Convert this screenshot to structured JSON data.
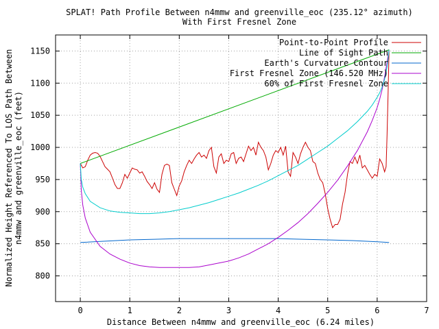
{
  "chart_data": {
    "type": "line",
    "title": "SPLAT! Path Profile Between n4mmw and greenville_eoc (235.12° azimuth)",
    "subtitle": "With First Fresnel Zone",
    "xlabel": "Distance Between n4mmw and greenville_eoc (6.24 miles)",
    "ylabel_line1": "Normalized Height Referenced To LOS Path Between",
    "ylabel_line2": "n4mmw and greenville_eoc (feet)",
    "xlim": [
      -0.5,
      7
    ],
    "ylim": [
      760,
      1175
    ],
    "x_ticks": [
      0,
      1,
      2,
      3,
      4,
      5,
      6,
      7
    ],
    "y_ticks": [
      800,
      850,
      900,
      950,
      1000,
      1050,
      1100,
      1150
    ],
    "grid": true,
    "legend_position": "top-right",
    "series": [
      {
        "name": "Point-to-Point Profile",
        "color": "#cc0000",
        "points": [
          [
            0,
            975
          ],
          [
            0.05,
            968
          ],
          [
            0.1,
            970
          ],
          [
            0.15,
            980
          ],
          [
            0.2,
            988
          ],
          [
            0.25,
            991
          ],
          [
            0.3,
            992
          ],
          [
            0.35,
            991
          ],
          [
            0.4,
            986
          ],
          [
            0.45,
            978
          ],
          [
            0.5,
            970
          ],
          [
            0.55,
            966
          ],
          [
            0.6,
            962
          ],
          [
            0.65,
            952
          ],
          [
            0.7,
            942
          ],
          [
            0.75,
            936
          ],
          [
            0.8,
            936
          ],
          [
            0.85,
            945
          ],
          [
            0.9,
            958
          ],
          [
            0.95,
            952
          ],
          [
            1.0,
            960
          ],
          [
            1.05,
            968
          ],
          [
            1.1,
            966
          ],
          [
            1.15,
            965
          ],
          [
            1.2,
            960
          ],
          [
            1.25,
            962
          ],
          [
            1.3,
            955
          ],
          [
            1.35,
            947
          ],
          [
            1.4,
            942
          ],
          [
            1.45,
            936
          ],
          [
            1.5,
            945
          ],
          [
            1.55,
            935
          ],
          [
            1.6,
            930
          ],
          [
            1.65,
            958
          ],
          [
            1.7,
            972
          ],
          [
            1.75,
            974
          ],
          [
            1.8,
            972
          ],
          [
            1.85,
            945
          ],
          [
            1.9,
            935
          ],
          [
            1.95,
            925
          ],
          [
            2.0,
            940
          ],
          [
            2.05,
            948
          ],
          [
            2.1,
            962
          ],
          [
            2.15,
            972
          ],
          [
            2.2,
            980
          ],
          [
            2.25,
            975
          ],
          [
            2.3,
            982
          ],
          [
            2.35,
            988
          ],
          [
            2.4,
            992
          ],
          [
            2.45,
            985
          ],
          [
            2.5,
            988
          ],
          [
            2.55,
            983
          ],
          [
            2.6,
            995
          ],
          [
            2.65,
            1000
          ],
          [
            2.7,
            970
          ],
          [
            2.75,
            960
          ],
          [
            2.8,
            985
          ],
          [
            2.85,
            990
          ],
          [
            2.9,
            975
          ],
          [
            2.95,
            980
          ],
          [
            3.0,
            978
          ],
          [
            3.05,
            990
          ],
          [
            3.1,
            992
          ],
          [
            3.15,
            975
          ],
          [
            3.2,
            983
          ],
          [
            3.25,
            985
          ],
          [
            3.3,
            978
          ],
          [
            3.35,
            990
          ],
          [
            3.4,
            1002
          ],
          [
            3.45,
            995
          ],
          [
            3.5,
            1000
          ],
          [
            3.55,
            988
          ],
          [
            3.6,
            1008
          ],
          [
            3.65,
            1000
          ],
          [
            3.7,
            995
          ],
          [
            3.75,
            985
          ],
          [
            3.8,
            965
          ],
          [
            3.85,
            975
          ],
          [
            3.9,
            988
          ],
          [
            3.95,
            995
          ],
          [
            4.0,
            992
          ],
          [
            4.05,
            1000
          ],
          [
            4.1,
            988
          ],
          [
            4.15,
            1002
          ],
          [
            4.2,
            962
          ],
          [
            4.25,
            955
          ],
          [
            4.3,
            992
          ],
          [
            4.35,
            985
          ],
          [
            4.4,
            975
          ],
          [
            4.45,
            990
          ],
          [
            4.5,
            1000
          ],
          [
            4.55,
            1008
          ],
          [
            4.6,
            1000
          ],
          [
            4.65,
            995
          ],
          [
            4.7,
            978
          ],
          [
            4.75,
            975
          ],
          [
            4.8,
            960
          ],
          [
            4.85,
            950
          ],
          [
            4.9,
            945
          ],
          [
            4.95,
            928
          ],
          [
            5.0,
            905
          ],
          [
            5.05,
            888
          ],
          [
            5.1,
            875
          ],
          [
            5.15,
            880
          ],
          [
            5.2,
            880
          ],
          [
            5.25,
            888
          ],
          [
            5.3,
            912
          ],
          [
            5.35,
            930
          ],
          [
            5.4,
            958
          ],
          [
            5.45,
            978
          ],
          [
            5.5,
            975
          ],
          [
            5.55,
            985
          ],
          [
            5.6,
            975
          ],
          [
            5.65,
            988
          ],
          [
            5.7,
            968
          ],
          [
            5.75,
            972
          ],
          [
            5.8,
            965
          ],
          [
            5.85,
            958
          ],
          [
            5.9,
            952
          ],
          [
            5.95,
            958
          ],
          [
            6.0,
            955
          ],
          [
            6.05,
            982
          ],
          [
            6.1,
            975
          ],
          [
            6.15,
            962
          ],
          [
            6.18,
            970
          ],
          [
            6.2,
            1020
          ],
          [
            6.22,
            1080
          ],
          [
            6.24,
            1152
          ]
        ]
      },
      {
        "name": "Line of Sight Path",
        "color": "#00aa00",
        "points": [
          [
            0,
            975
          ],
          [
            6.24,
            1152
          ]
        ]
      },
      {
        "name": "Earth's Curvature Contour",
        "color": "#0066cc",
        "points": [
          [
            0,
            852
          ],
          [
            0.5,
            854
          ],
          [
            1,
            856
          ],
          [
            1.5,
            857
          ],
          [
            2,
            858
          ],
          [
            2.5,
            858
          ],
          [
            3,
            858
          ],
          [
            3.5,
            858
          ],
          [
            4,
            858
          ],
          [
            4.5,
            857
          ],
          [
            5,
            856
          ],
          [
            5.5,
            855
          ],
          [
            6,
            853
          ],
          [
            6.24,
            852
          ]
        ]
      },
      {
        "name": "First Fresnel Zone (146.520 MHz)",
        "color": "#aa00cc",
        "points": [
          [
            0,
            975
          ],
          [
            0.02,
            933
          ],
          [
            0.05,
            910
          ],
          [
            0.1,
            890
          ],
          [
            0.2,
            868
          ],
          [
            0.4,
            846
          ],
          [
            0.6,
            834
          ],
          [
            0.8,
            826
          ],
          [
            1.0,
            820
          ],
          [
            1.2,
            816
          ],
          [
            1.4,
            814
          ],
          [
            1.6,
            813
          ],
          [
            1.8,
            813
          ],
          [
            2.0,
            813
          ],
          [
            2.2,
            813
          ],
          [
            2.4,
            814
          ],
          [
            2.6,
            817
          ],
          [
            2.8,
            820
          ],
          [
            3.0,
            823
          ],
          [
            3.2,
            828
          ],
          [
            3.4,
            834
          ],
          [
            3.6,
            842
          ],
          [
            3.8,
            850
          ],
          [
            4.0,
            860
          ],
          [
            4.2,
            871
          ],
          [
            4.4,
            883
          ],
          [
            4.6,
            897
          ],
          [
            4.8,
            913
          ],
          [
            5.0,
            930
          ],
          [
            5.2,
            949
          ],
          [
            5.4,
            971
          ],
          [
            5.6,
            995
          ],
          [
            5.8,
            1024
          ],
          [
            5.9,
            1042
          ],
          [
            6.0,
            1062
          ],
          [
            6.05,
            1075
          ],
          [
            6.1,
            1090
          ],
          [
            6.15,
            1110
          ],
          [
            6.2,
            1133
          ],
          [
            6.22,
            1142
          ],
          [
            6.24,
            1152
          ]
        ]
      },
      {
        "name": "60% of First Fresnel Zone",
        "color": "#00cccc",
        "points": [
          [
            0,
            975
          ],
          [
            0.02,
            950
          ],
          [
            0.05,
            938
          ],
          [
            0.1,
            928
          ],
          [
            0.2,
            916
          ],
          [
            0.4,
            906
          ],
          [
            0.6,
            901
          ],
          [
            0.8,
            899
          ],
          [
            1.0,
            898
          ],
          [
            1.2,
            897
          ],
          [
            1.4,
            897
          ],
          [
            1.6,
            898
          ],
          [
            1.8,
            900
          ],
          [
            2.0,
            903
          ],
          [
            2.2,
            906
          ],
          [
            2.4,
            910
          ],
          [
            2.6,
            914
          ],
          [
            2.8,
            919
          ],
          [
            3.0,
            924
          ],
          [
            3.2,
            929
          ],
          [
            3.4,
            935
          ],
          [
            3.6,
            941
          ],
          [
            3.8,
            948
          ],
          [
            4.0,
            956
          ],
          [
            4.2,
            964
          ],
          [
            4.4,
            972
          ],
          [
            4.6,
            982
          ],
          [
            4.8,
            992
          ],
          [
            5.0,
            1002
          ],
          [
            5.2,
            1014
          ],
          [
            5.4,
            1026
          ],
          [
            5.6,
            1040
          ],
          [
            5.8,
            1056
          ],
          [
            5.9,
            1066
          ],
          [
            6.0,
            1078
          ],
          [
            6.05,
            1085
          ],
          [
            6.1,
            1094
          ],
          [
            6.15,
            1106
          ],
          [
            6.2,
            1125
          ],
          [
            6.22,
            1136
          ],
          [
            6.24,
            1152
          ]
        ]
      }
    ]
  }
}
